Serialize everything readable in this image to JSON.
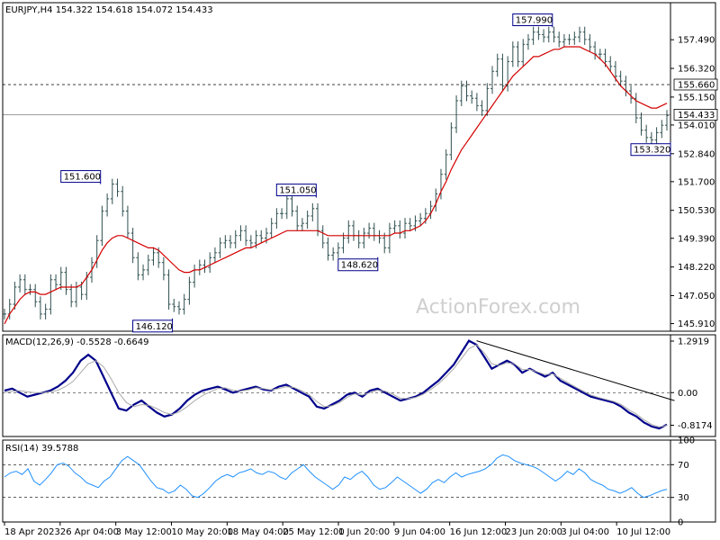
{
  "header": {
    "price_title": "EURJPY,H4  154.322 154.618 154.072 154.433",
    "macd_title": "MACD(12,26,9) -0.5528 -0.6649",
    "rsi_title": "RSI(14) 39.5788"
  },
  "watermark": "ActionForex.com",
  "colors": {
    "bars": "#2f4f4f",
    "ma": "#d40000",
    "macd": "#00008b",
    "signal": "#aaaaaa",
    "rsi": "#1e90ff",
    "grid": "#000000"
  },
  "chart_data": [
    {
      "type": "bar",
      "ylim": [
        145.6,
        159.0
      ],
      "y_ticks": [
        "157.490",
        "156.320",
        "155.150",
        "154.010",
        "152.840",
        "151.700",
        "150.530",
        "149.390",
        "148.220",
        "147.050",
        "145.910"
      ],
      "hlines": [
        {
          "value": 155.66,
          "label": "155.660",
          "style": "dashed"
        },
        {
          "value": 154.433,
          "label": "154.433",
          "style": "solid"
        }
      ],
      "annotations": [
        {
          "label": "151.600",
          "x": 18,
          "y": 151.6
        },
        {
          "label": "146.120",
          "x": 32,
          "y": 146.12
        },
        {
          "label": "151.050",
          "x": 60,
          "y": 151.05
        },
        {
          "label": "148.620",
          "x": 72,
          "y": 148.62
        },
        {
          "label": "157.990",
          "x": 106,
          "y": 157.99
        },
        {
          "label": "153.320",
          "x": 129,
          "y": 153.32
        }
      ],
      "series": [
        {
          "kind": "ohlc",
          "values": [
            146.3,
            146.7,
            147.4,
            147.7,
            147.3,
            147.3,
            146.8,
            146.3,
            146.5,
            147.7,
            147.5,
            148.0,
            147.3,
            146.8,
            147.4,
            147.1,
            147.8,
            148.4,
            149.3,
            150.5,
            151.0,
            151.6,
            151.3,
            150.5,
            149.6,
            148.6,
            147.9,
            148.1,
            148.5,
            148.8,
            148.4,
            147.9,
            146.7,
            146.6,
            146.5,
            146.9,
            147.6,
            148.1,
            148.3,
            148.2,
            148.6,
            148.8,
            149.2,
            149.3,
            149.2,
            149.5,
            149.7,
            149.3,
            149.2,
            149.5,
            149.4,
            149.6,
            150.0,
            150.4,
            150.4,
            151.0,
            150.5,
            149.9,
            150.0,
            150.3,
            150.6,
            149.7,
            149.2,
            148.7,
            148.8,
            149.0,
            149.4,
            149.9,
            149.5,
            149.2,
            149.6,
            149.8,
            149.5,
            149.4,
            149.0,
            149.8,
            149.9,
            149.6,
            150.0,
            149.9,
            150.1,
            150.2,
            150.4,
            150.7,
            151.2,
            152.0,
            152.8,
            153.9,
            155.0,
            155.6,
            155.2,
            155.1,
            154.8,
            154.6,
            155.5,
            156.2,
            156.7,
            155.6,
            156.6,
            157.2,
            156.6,
            157.3,
            157.5,
            157.8,
            157.7,
            157.6,
            157.8,
            157.6,
            157.4,
            157.5,
            157.5,
            157.6,
            157.8,
            157.5,
            157.2,
            156.9,
            156.9,
            156.6,
            156.4,
            156.0,
            155.8,
            155.4,
            155.1,
            154.3,
            153.8,
            153.5,
            153.4,
            153.7,
            154.0,
            154.4
          ]
        },
        {
          "kind": "line",
          "name": "",
          "values": [
            145.9,
            146.3,
            146.6,
            146.9,
            147.1,
            147.2,
            147.2,
            147.1,
            147.1,
            147.2,
            147.3,
            147.4,
            147.4,
            147.4,
            147.4,
            147.5,
            147.8,
            148.1,
            148.5,
            148.9,
            149.2,
            149.4,
            149.5,
            149.5,
            149.4,
            149.3,
            149.2,
            149.1,
            149.0,
            149.0,
            148.9,
            148.7,
            148.5,
            148.3,
            148.1,
            148.0,
            148.0,
            148.1,
            148.1,
            148.2,
            148.3,
            148.4,
            148.5,
            148.6,
            148.7,
            148.8,
            148.9,
            149.0,
            149.0,
            149.1,
            149.2,
            149.3,
            149.4,
            149.5,
            149.6,
            149.7,
            149.7,
            149.7,
            149.7,
            149.7,
            149.7,
            149.7,
            149.6,
            149.5,
            149.5,
            149.5,
            149.5,
            149.5,
            149.5,
            149.5,
            149.5,
            149.5,
            149.5,
            149.5,
            149.5,
            149.5,
            149.6,
            149.6,
            149.7,
            149.7,
            149.8,
            149.9,
            150.1,
            150.4,
            150.8,
            151.3,
            151.7,
            152.2,
            152.6,
            153.0,
            153.3,
            153.6,
            153.9,
            154.2,
            154.5,
            154.8,
            155.1,
            155.4,
            155.7,
            156.0,
            156.2,
            156.4,
            156.6,
            156.8,
            156.8,
            156.9,
            157.0,
            157.1,
            157.1,
            157.2,
            157.2,
            157.2,
            157.2,
            157.1,
            157.0,
            156.9,
            156.7,
            156.5,
            156.2,
            155.9,
            155.6,
            155.4,
            155.2,
            155.0,
            154.9,
            154.8,
            154.7,
            154.7,
            154.8,
            154.9
          ]
        }
      ]
    },
    {
      "type": "line",
      "ylim": [
        -1.1,
        1.45
      ],
      "y_ticks": [
        "1.2919",
        "0.00",
        "-0.8174"
      ],
      "hlines": [
        {
          "value": 0.0,
          "label": "0.00",
          "style": "dashed"
        }
      ],
      "series": [
        {
          "name": "",
          "values": [
            0.05,
            0.1,
            0.0,
            -0.1,
            -0.05,
            0.0,
            0.05,
            0.15,
            0.3,
            0.5,
            0.8,
            0.95,
            0.8,
            0.4,
            0.0,
            -0.4,
            -0.45,
            -0.3,
            -0.2,
            -0.35,
            -0.5,
            -0.6,
            -0.55,
            -0.4,
            -0.2,
            -0.05,
            0.05,
            0.1,
            0.15,
            0.08,
            0.0,
            0.05,
            0.1,
            0.15,
            0.08,
            0.05,
            0.15,
            0.2,
            0.1,
            0.0,
            -0.1,
            -0.35,
            -0.4,
            -0.3,
            -0.2,
            -0.05,
            0.0,
            -0.1,
            0.05,
            0.1,
            0.0,
            -0.1,
            -0.2,
            -0.15,
            -0.1,
            0.0,
            0.15,
            0.3,
            0.5,
            0.7,
            1.0,
            1.3,
            1.2,
            0.9,
            0.6,
            0.7,
            0.8,
            0.7,
            0.5,
            0.6,
            0.5,
            0.4,
            0.5,
            0.3,
            0.2,
            0.1,
            0.0,
            -0.1,
            -0.15,
            -0.2,
            -0.25,
            -0.35,
            -0.5,
            -0.6,
            -0.75,
            -0.85,
            -0.9,
            -0.8
          ]
        },
        {
          "name": "",
          "values": [
            0.0,
            0.03,
            0.05,
            0.02,
            0.0,
            0.0,
            0.02,
            0.06,
            0.15,
            0.28,
            0.5,
            0.72,
            0.8,
            0.65,
            0.35,
            0.0,
            -0.25,
            -0.35,
            -0.3,
            -0.32,
            -0.4,
            -0.5,
            -0.55,
            -0.48,
            -0.35,
            -0.2,
            -0.07,
            0.02,
            0.1,
            0.12,
            0.06,
            0.04,
            0.07,
            0.12,
            0.1,
            0.07,
            0.1,
            0.15,
            0.13,
            0.05,
            -0.05,
            -0.22,
            -0.35,
            -0.33,
            -0.25,
            -0.12,
            -0.03,
            -0.06,
            0.0,
            0.06,
            0.04,
            -0.04,
            -0.14,
            -0.15,
            -0.12,
            -0.04,
            0.08,
            0.22,
            0.4,
            0.6,
            0.85,
            1.1,
            1.2,
            1.0,
            0.72,
            0.68,
            0.75,
            0.72,
            0.58,
            0.58,
            0.52,
            0.45,
            0.47,
            0.36,
            0.25,
            0.14,
            0.04,
            -0.06,
            -0.12,
            -0.17,
            -0.22,
            -0.3,
            -0.43,
            -0.54,
            -0.68,
            -0.8,
            -0.86,
            -0.82
          ]
        }
      ],
      "trendline": {
        "from": [
          62,
          1.3
        ],
        "to": [
          88,
          -0.2
        ]
      }
    },
    {
      "type": "line",
      "ylim": [
        0,
        100
      ],
      "y_ticks": [
        "100",
        "70",
        "30",
        "0"
      ],
      "hlines": [
        {
          "value": 70,
          "style": "dashed"
        },
        {
          "value": 30,
          "style": "dashed"
        }
      ],
      "series": [
        {
          "name": "",
          "values": [
            55,
            60,
            62,
            58,
            65,
            50,
            45,
            52,
            60,
            70,
            72,
            68,
            60,
            55,
            48,
            45,
            42,
            50,
            55,
            65,
            75,
            80,
            75,
            70,
            60,
            50,
            42,
            40,
            35,
            38,
            45,
            40,
            32,
            30,
            35,
            42,
            50,
            55,
            58,
            55,
            60,
            62,
            65,
            60,
            58,
            62,
            60,
            55,
            52,
            60,
            65,
            70,
            62,
            55,
            50,
            45,
            40,
            45,
            55,
            52,
            58,
            62,
            55,
            45,
            40,
            42,
            48,
            55,
            50,
            45,
            40,
            35,
            40,
            48,
            52,
            48,
            55,
            60,
            55,
            58,
            60,
            62,
            65,
            70,
            78,
            82,
            80,
            75,
            72,
            70,
            68,
            65,
            60,
            55,
            50,
            55,
            62,
            58,
            65,
            60,
            52,
            48,
            45,
            40,
            38,
            35,
            38,
            42,
            35,
            30,
            32,
            35,
            38,
            40
          ]
        }
      ],
      "xlabel": ""
    }
  ],
  "x_axis": {
    "tick_labels": [
      "18 Apr 2023",
      "26 Apr 04:00",
      "3 May 12:00",
      "10 May 20:00",
      "18 May 04:00",
      "25 May 12:00",
      "1 Jun 20:00",
      "9 Jun 04:00",
      "16 Jun 12:00",
      "23 Jun 20:00",
      "3 Jul 04:00",
      "10 Jul 12:00"
    ]
  }
}
